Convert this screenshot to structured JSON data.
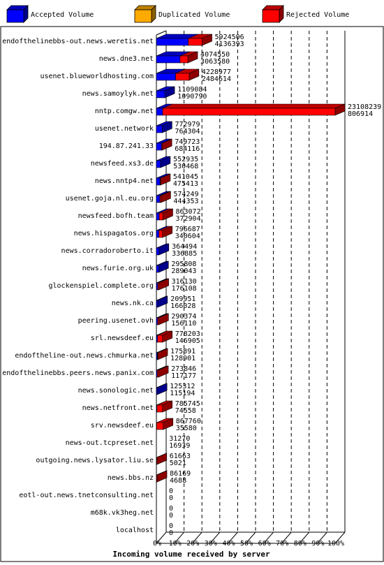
{
  "chart_data": {
    "type": "bar",
    "orientation": "horizontal",
    "stacked": true,
    "style": "3d",
    "title": "",
    "xlabel": "Incoming volume received by server",
    "ylabel": "",
    "xlim": [
      0,
      100
    ],
    "x_ticks": [
      "0%",
      "10%",
      "20%",
      "30%",
      "40%",
      "50%",
      "60%",
      "70%",
      "80%",
      "90%",
      "100%"
    ],
    "grid": true,
    "legend_position": "top",
    "series": [
      {
        "name": "Accepted Volume",
        "color": "#0000ff"
      },
      {
        "name": "Duplicated Volume",
        "color": "#ffaa00"
      },
      {
        "name": "Rejected Volume",
        "color": "#ff0000"
      }
    ],
    "rows": [
      {
        "server": "endofthelinebbs-out.news.weretis.net",
        "total": "5924506",
        "accepted": "4136393",
        "share": 0.256,
        "accepted_frac": 0.698
      },
      {
        "server": "news.dne3.net",
        "total": "4074550",
        "accepted": "3063580",
        "share": 0.176,
        "accepted_frac": 0.752
      },
      {
        "server": "usenet.blueworldhosting.com",
        "total": "4228977",
        "accepted": "2484614",
        "share": 0.183,
        "accepted_frac": 0.588
      },
      {
        "server": "news.samoylyk.net",
        "total": "1109084",
        "accepted": "1090790",
        "share": 0.048,
        "accepted_frac": 0.983
      },
      {
        "server": "nntp.comgw.net",
        "total": "23108239",
        "accepted": "806914",
        "share": 1.0,
        "accepted_frac": 0.035
      },
      {
        "server": "usenet.network",
        "total": "772979",
        "accepted": "764304",
        "share": 0.033,
        "accepted_frac": 0.989
      },
      {
        "server": "194.87.241.33",
        "total": "749723",
        "accepted": "684116",
        "share": 0.032,
        "accepted_frac": 0.912
      },
      {
        "server": "newsfeed.xs3.de",
        "total": "552935",
        "accepted": "530468",
        "share": 0.024,
        "accepted_frac": 0.959
      },
      {
        "server": "news.nntp4.net",
        "total": "541045",
        "accepted": "475413",
        "share": 0.023,
        "accepted_frac": 0.879
      },
      {
        "server": "usenet.goja.nl.eu.org",
        "total": "574249",
        "accepted": "444353",
        "share": 0.025,
        "accepted_frac": 0.774
      },
      {
        "server": "newsfeed.bofh.team",
        "total": "863072",
        "accepted": "372904",
        "share": 0.037,
        "accepted_frac": 0.432
      },
      {
        "server": "news.hispagatos.org",
        "total": "796687",
        "accepted": "340604",
        "share": 0.034,
        "accepted_frac": 0.428
      },
      {
        "server": "news.corradoroberto.it",
        "total": "364494",
        "accepted": "336885",
        "share": 0.016,
        "accepted_frac": 0.924
      },
      {
        "server": "news.furie.org.uk",
        "total": "295808",
        "accepted": "289043",
        "share": 0.013,
        "accepted_frac": 0.977
      },
      {
        "server": "glockenspiel.complete.org",
        "total": "316130",
        "accepted": "176108",
        "share": 0.014,
        "accepted_frac": 0.557
      },
      {
        "server": "news.nk.ca",
        "total": "209951",
        "accepted": "166028",
        "share": 0.009,
        "accepted_frac": 0.791
      },
      {
        "server": "peering.usenet.ovh",
        "total": "290374",
        "accepted": "156110",
        "share": 0.013,
        "accepted_frac": 0.538
      },
      {
        "server": "srl.newsdeef.eu",
        "total": "778203",
        "accepted": "146905",
        "share": 0.034,
        "accepted_frac": 0.189
      },
      {
        "server": "endoftheline-out.news.chmurka.net",
        "total": "175891",
        "accepted": "128901",
        "share": 0.008,
        "accepted_frac": 0.733
      },
      {
        "server": "endofthelinebbs.peers.news.panix.com",
        "total": "273846",
        "accepted": "117177",
        "share": 0.012,
        "accepted_frac": 0.428
      },
      {
        "server": "news.sonologic.net",
        "total": "125312",
        "accepted": "115194",
        "share": 0.005,
        "accepted_frac": 0.919
      },
      {
        "server": "news.netfront.net",
        "total": "785745",
        "accepted": "74558",
        "share": 0.034,
        "accepted_frac": 0.095
      },
      {
        "server": "srv.newsdeef.eu",
        "total": "867760",
        "accepted": "35580",
        "share": 0.038,
        "accepted_frac": 0.041
      },
      {
        "server": "news-out.tcpreset.net",
        "total": "31270",
        "accepted": "16939",
        "share": 0.001,
        "accepted_frac": 0.542
      },
      {
        "server": "outgoing.news.lysator.liu.se",
        "total": "61663",
        "accepted": "5021",
        "share": 0.003,
        "accepted_frac": 0.081
      },
      {
        "server": "news.bbs.nz",
        "total": "86169",
        "accepted": "4688",
        "share": 0.004,
        "accepted_frac": 0.054
      },
      {
        "server": "eotl-out.news.tnetconsulting.net",
        "total": "0",
        "accepted": "0",
        "share": 0,
        "accepted_frac": 0
      },
      {
        "server": "m68k.vk3heg.net",
        "total": "0",
        "accepted": "0",
        "share": 0,
        "accepted_frac": 0
      },
      {
        "server": "localhost",
        "total": "0",
        "accepted": "0",
        "share": 0,
        "accepted_frac": 0
      }
    ]
  }
}
